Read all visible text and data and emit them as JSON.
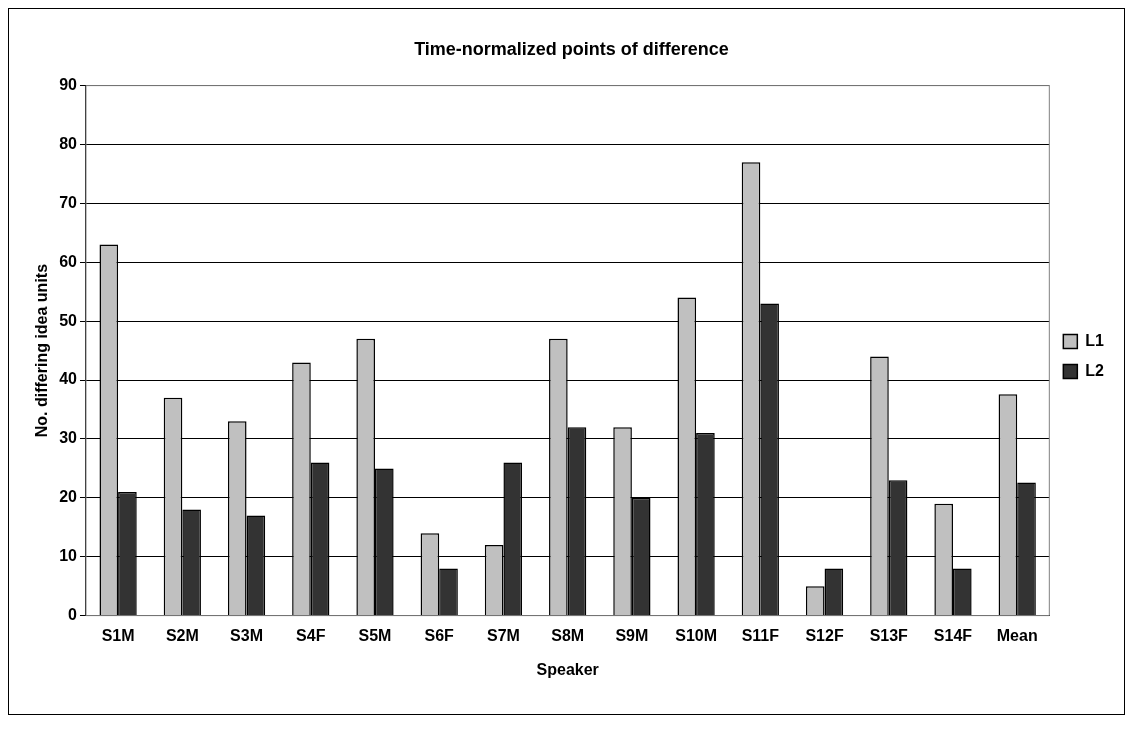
{
  "chart_data": {
    "type": "bar",
    "title": "Time-normalized points of difference",
    "xlabel": "Speaker",
    "ylabel": "No. differing idea units",
    "categories": [
      "S1M",
      "S2M",
      "S3M",
      "S4F",
      "S5M",
      "S6F",
      "S7M",
      "S8M",
      "S9M",
      "S10M",
      "S11F",
      "S12F",
      "S13F",
      "S14F",
      "Mean"
    ],
    "series": [
      {
        "name": "L1",
        "color": "#c0c0c0",
        "values": [
          63,
          37,
          33,
          43,
          47,
          14,
          12,
          47,
          32,
          54,
          77,
          5,
          44,
          19,
          37.6
        ]
      },
      {
        "name": "L2",
        "color": "#333333",
        "values": [
          21,
          18,
          17,
          26,
          25,
          8,
          26,
          32,
          20,
          31,
          53,
          8,
          23,
          8,
          22.6
        ]
      }
    ],
    "ylim": [
      0,
      90
    ],
    "yticks": [
      0,
      10,
      20,
      30,
      40,
      50,
      60,
      70,
      80,
      90
    ],
    "grid": "y",
    "legend": "right"
  }
}
